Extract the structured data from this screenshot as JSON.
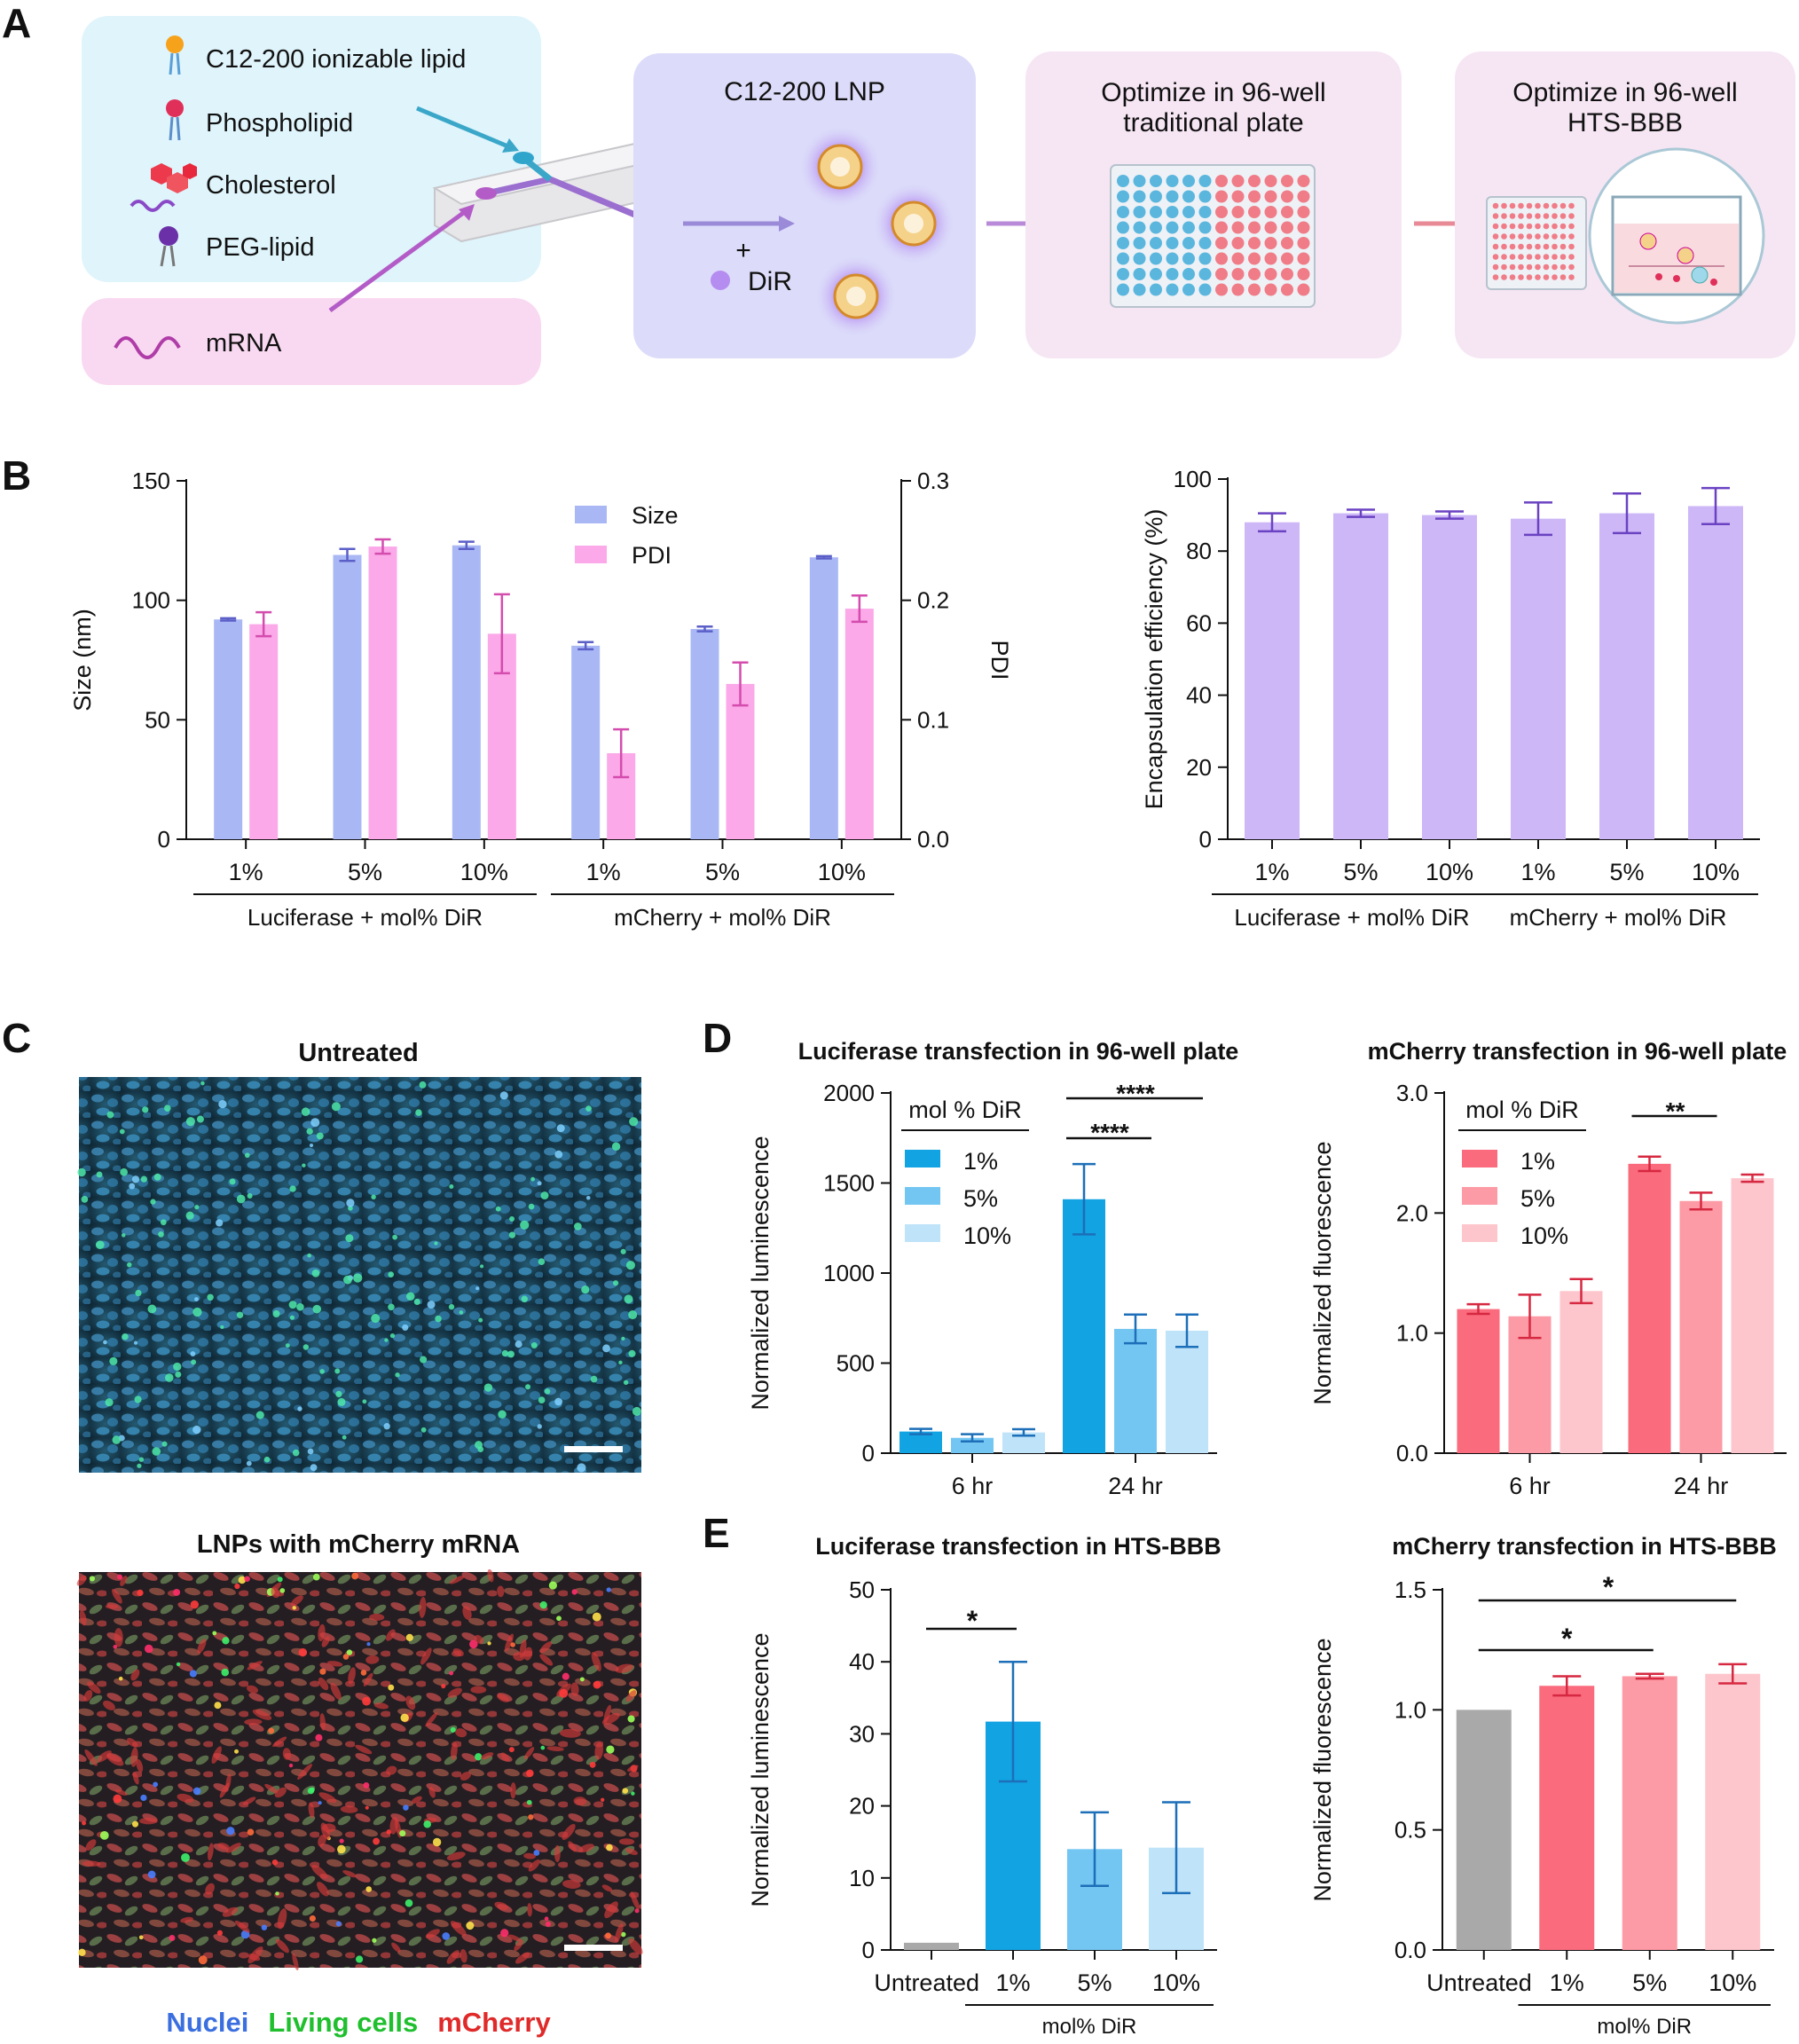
{
  "panel_labels": {
    "a": "A",
    "b": "B",
    "c": "C",
    "d": "D",
    "e": "E"
  },
  "panel_a": {
    "components": [
      "C12-200 ionizable lipid",
      "Phospholipid",
      "Cholesterol",
      "PEG-lipid"
    ],
    "mrna": "mRNA",
    "plus": "+",
    "dir": "DiR",
    "lnp_title": "C12-200 LNP",
    "step2": [
      "Optimize in 96-well",
      "traditional plate"
    ],
    "step3": [
      "Optimize in 96-well",
      "HTS-BBB"
    ],
    "colors": {
      "lipid_box": "#dff4fb",
      "mrna_box": "#f9d9f1",
      "lnp_box": "#dcdcfa",
      "step_box": "#f6e6f4"
    }
  },
  "panel_c": {
    "untreated_title": "Untreated",
    "lnp_title": "LNPs with mCherry mRNA",
    "legend": [
      {
        "label": "Nuclei",
        "color": "#3b6fe0"
      },
      {
        "label": "Living cells",
        "color": "#1fbf2e"
      },
      {
        "label": "mCherry",
        "color": "#e02a2a"
      }
    ]
  },
  "chart_data": [
    {
      "id": "b_size_pdi",
      "type": "bar",
      "title": "",
      "categories": [
        "1%",
        "5%",
        "10%",
        "1%",
        "5%",
        "10%"
      ],
      "groups": [
        {
          "label": "Luciferase + mol% DiR",
          "span": [
            0,
            2
          ]
        },
        {
          "label": "mCherry + mol% DiR",
          "span": [
            3,
            5
          ]
        }
      ],
      "series": [
        {
          "name": "Size",
          "axis": "left",
          "color": "#a9b8f5",
          "err_color": "#5b5fc7",
          "values": [
            92,
            119,
            123,
            81,
            88,
            118
          ],
          "errors": [
            0.5,
            2.5,
            1.5,
            1.5,
            1,
            0.5
          ]
        },
        {
          "name": "PDI",
          "axis": "right",
          "color": "#fba9e8",
          "err_color": "#d44cae",
          "values": [
            0.18,
            0.245,
            0.172,
            0.072,
            0.13,
            0.193
          ],
          "errors": [
            0.01,
            0.006,
            0.033,
            0.02,
            0.018,
            0.011
          ]
        }
      ],
      "ylabel": "Size (nm)",
      "ylim": [
        0,
        150
      ],
      "yticks": [
        "0",
        "50",
        "100",
        "150"
      ],
      "y2label": "PDI",
      "y2lim": [
        0,
        0.3
      ],
      "y2ticks": [
        "0.0",
        "0.1",
        "0.2",
        "0.3"
      ],
      "legend_position": "top-center"
    },
    {
      "id": "b_ee",
      "type": "bar",
      "title": "",
      "categories": [
        "1%",
        "5%",
        "10%",
        "1%",
        "5%",
        "10%"
      ],
      "groups": [
        {
          "label": "Luciferase + mol% DiR",
          "span": [
            0,
            2
          ]
        },
        {
          "label": "mCherry + mol% DiR",
          "span": [
            3,
            5
          ]
        }
      ],
      "series": [
        {
          "color": "#cdb7f7",
          "err_color": "#6a42c2",
          "values": [
            88,
            90.5,
            90,
            89,
            90.5,
            92.5
          ],
          "errors": [
            2.5,
            1,
            1,
            4.5,
            5.5,
            5
          ]
        }
      ],
      "ylabel": "Encapsulation efficiency (%)",
      "ylim": [
        0,
        100
      ],
      "yticks": [
        "0",
        "20",
        "40",
        "60",
        "80",
        "100"
      ]
    },
    {
      "id": "d_luc",
      "type": "bar",
      "title": "Luciferase transfection in 96-well plate",
      "categories": [
        "6 hr",
        "24 hr"
      ],
      "series": [
        {
          "name": "1%",
          "color": "#12a3e3",
          "values": [
            120,
            1410
          ],
          "errors": [
            15,
            195
          ]
        },
        {
          "name": "5%",
          "color": "#74c6f2",
          "values": [
            85,
            690
          ],
          "errors": [
            20,
            80
          ]
        },
        {
          "name": "10%",
          "color": "#bfe3f9",
          "values": [
            115,
            680
          ],
          "errors": [
            18,
            90
          ]
        }
      ],
      "err_color": "#1c6fb8",
      "legend_title": "mol % DiR",
      "ylabel": "Normalized luminescence",
      "ylim": [
        0,
        2000
      ],
      "yticks": [
        "0",
        "500",
        "1000",
        "1500",
        "2000"
      ],
      "significance": [
        {
          "label": "****",
          "from": [
            1,
            0
          ],
          "to": [
            1,
            1
          ]
        },
        {
          "label": "****",
          "from": [
            1,
            0
          ],
          "to": [
            1,
            2
          ]
        }
      ]
    },
    {
      "id": "d_mch",
      "type": "bar",
      "title": "mCherry transfection in 96-well plate",
      "categories": [
        "6 hr",
        "24 hr"
      ],
      "series": [
        {
          "name": "1%",
          "color": "#fb6b7e",
          "values": [
            1.2,
            2.41
          ],
          "errors": [
            0.04,
            0.06
          ]
        },
        {
          "name": "5%",
          "color": "#fc9aa5",
          "values": [
            1.14,
            2.1
          ],
          "errors": [
            0.18,
            0.07
          ]
        },
        {
          "name": "10%",
          "color": "#fdc6cc",
          "values": [
            1.35,
            2.29
          ],
          "errors": [
            0.1,
            0.03
          ]
        }
      ],
      "err_color": "#d62840",
      "legend_title": "mol % DiR",
      "ylabel": "Normalized fluorescence",
      "ylim": [
        0,
        3
      ],
      "yticks": [
        "0.0",
        "1.0",
        "2.0",
        "3.0"
      ],
      "significance": [
        {
          "label": "**",
          "from": [
            1,
            0
          ],
          "to": [
            1,
            1
          ]
        }
      ]
    },
    {
      "id": "e_luc",
      "type": "bar",
      "title": "Luciferase transfection in HTS-BBB",
      "categories": [
        "Untreated",
        "1%",
        "5%",
        "10%"
      ],
      "group_label": "mol% DiR",
      "series": [
        {
          "values": [
            1,
            31.7,
            14,
            14.2
          ],
          "errors": [
            0,
            8.3,
            5.1,
            6.3
          ],
          "colors": [
            "#a9a9a9",
            "#12a3e3",
            "#74c6f2",
            "#bfe3f9"
          ]
        }
      ],
      "err_color": "#1c6fb8",
      "ylabel": "Normalized luminescence",
      "ylim": [
        0,
        50
      ],
      "yticks": [
        "0",
        "10",
        "20",
        "30",
        "40",
        "50"
      ],
      "significance": [
        {
          "label": "*",
          "from": 0,
          "to": 1
        }
      ]
    },
    {
      "id": "e_mch",
      "type": "bar",
      "title": "mCherry transfection in HTS-BBB",
      "categories": [
        "Untreated",
        "1%",
        "5%",
        "10%"
      ],
      "group_label": "mol% DiR",
      "series": [
        {
          "values": [
            1.0,
            1.1,
            1.14,
            1.15
          ],
          "errors": [
            0,
            0.04,
            0.01,
            0.04
          ],
          "colors": [
            "#a9a9a9",
            "#fb6b7e",
            "#fc9aa5",
            "#fdc6cc"
          ]
        }
      ],
      "err_color": "#d62840",
      "ylabel": "Normalized fluorescence",
      "ylim": [
        0,
        1.5
      ],
      "yticks": [
        "0.0",
        "0.5",
        "1.0",
        "1.5"
      ],
      "significance": [
        {
          "label": "*",
          "from": 0,
          "to": 2
        },
        {
          "label": "*",
          "from": 0,
          "to": 3
        }
      ]
    }
  ]
}
